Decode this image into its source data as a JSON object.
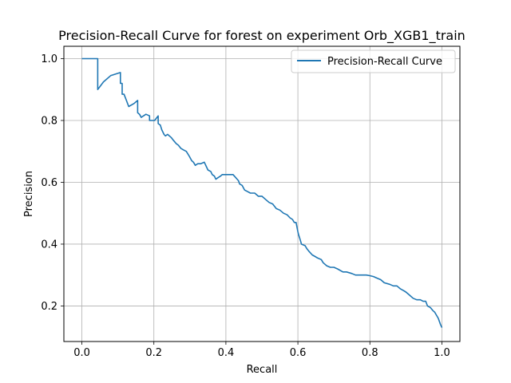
{
  "chart_data": {
    "type": "line",
    "title": "Precision-Recall Curve for forest on experiment Orb_XGB1_train",
    "xlabel": "Recall",
    "ylabel": "Precision",
    "xlim": [
      -0.05,
      1.05
    ],
    "ylim": [
      0.085,
      1.04
    ],
    "grid": true,
    "legend_position": "top-right",
    "xticks": [
      0.0,
      0.2,
      0.4,
      0.6,
      0.8,
      1.0
    ],
    "xtick_labels": [
      "0.0",
      "0.2",
      "0.4",
      "0.6",
      "0.8",
      "1.0"
    ],
    "yticks": [
      0.2,
      0.4,
      0.6,
      0.8,
      1.0
    ],
    "ytick_labels": [
      "0.2",
      "0.4",
      "0.6",
      "0.8",
      "1.0"
    ],
    "line_color": "#1f77b4",
    "series": [
      {
        "name": "Precision-Recall Curve",
        "x": [
          0.0,
          0.044,
          0.044,
          0.06,
          0.08,
          0.107,
          0.107,
          0.112,
          0.112,
          0.117,
          0.122,
          0.122,
          0.13,
          0.13,
          0.145,
          0.155,
          0.155,
          0.16,
          0.165,
          0.165,
          0.178,
          0.188,
          0.188,
          0.202,
          0.212,
          0.212,
          0.218,
          0.222,
          0.228,
          0.232,
          0.238,
          0.248,
          0.255,
          0.262,
          0.268,
          0.275,
          0.282,
          0.29,
          0.298,
          0.305,
          0.31,
          0.315,
          0.322,
          0.33,
          0.34,
          0.35,
          0.358,
          0.362,
          0.368,
          0.372,
          0.378,
          0.385,
          0.39,
          0.4,
          0.41,
          0.42,
          0.435,
          0.438,
          0.445,
          0.452,
          0.46,
          0.468,
          0.48,
          0.49,
          0.5,
          0.51,
          0.52,
          0.53,
          0.54,
          0.55,
          0.56,
          0.57,
          0.578,
          0.585,
          0.59,
          0.595,
          0.6,
          0.602,
          0.605,
          0.61,
          0.62,
          0.625,
          0.632,
          0.64,
          0.648,
          0.655,
          0.665,
          0.67,
          0.68,
          0.69,
          0.7,
          0.71,
          0.725,
          0.735,
          0.75,
          0.76,
          0.78,
          0.79,
          0.8,
          0.81,
          0.82,
          0.83,
          0.84,
          0.855,
          0.865,
          0.875,
          0.885,
          0.893,
          0.9,
          0.905,
          0.91,
          0.92,
          0.93,
          0.94,
          0.948,
          0.955,
          0.96,
          0.968,
          0.975,
          0.98,
          0.985,
          0.99,
          0.993,
          0.996,
          0.998,
          1.0
        ],
        "y": [
          1.0,
          1.0,
          0.9,
          0.925,
          0.945,
          0.955,
          0.92,
          0.92,
          0.885,
          0.885,
          0.87,
          0.87,
          0.845,
          0.845,
          0.855,
          0.865,
          0.825,
          0.82,
          0.81,
          0.81,
          0.82,
          0.815,
          0.8,
          0.8,
          0.815,
          0.79,
          0.785,
          0.77,
          0.755,
          0.75,
          0.755,
          0.745,
          0.735,
          0.725,
          0.72,
          0.71,
          0.705,
          0.7,
          0.685,
          0.67,
          0.665,
          0.655,
          0.66,
          0.66,
          0.665,
          0.64,
          0.635,
          0.625,
          0.62,
          0.61,
          0.615,
          0.62,
          0.625,
          0.625,
          0.625,
          0.625,
          0.605,
          0.595,
          0.59,
          0.575,
          0.57,
          0.565,
          0.565,
          0.555,
          0.555,
          0.545,
          0.535,
          0.53,
          0.515,
          0.51,
          0.5,
          0.495,
          0.485,
          0.48,
          0.47,
          0.47,
          0.44,
          0.43,
          0.42,
          0.4,
          0.395,
          0.385,
          0.375,
          0.365,
          0.36,
          0.355,
          0.35,
          0.34,
          0.33,
          0.325,
          0.325,
          0.32,
          0.31,
          0.31,
          0.305,
          0.3,
          0.3,
          0.3,
          0.298,
          0.295,
          0.29,
          0.285,
          0.275,
          0.27,
          0.265,
          0.265,
          0.255,
          0.25,
          0.245,
          0.24,
          0.235,
          0.225,
          0.22,
          0.22,
          0.215,
          0.215,
          0.2,
          0.195,
          0.185,
          0.18,
          0.17,
          0.16,
          0.15,
          0.14,
          0.135,
          0.13
        ]
      }
    ]
  }
}
